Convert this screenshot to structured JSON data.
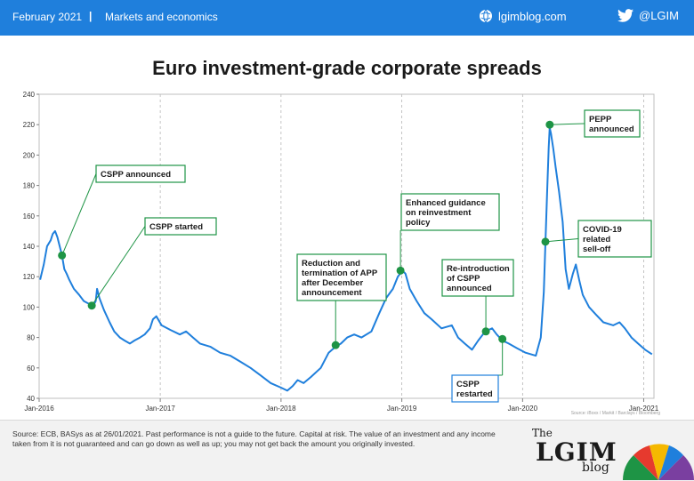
{
  "header": {
    "date": "February 2021",
    "separator": "|",
    "section": "Markets and economics",
    "site": "lgimblog.com",
    "handle": "@LGIM",
    "brand_color": "#1f7fdc"
  },
  "footer": {
    "source": "Source: ECB, BASys as at 26/01/2021. Past performance is not a guide to the future. Capital at risk. The value of an investment and any income taken from it is not guaranteed and can go down as well as up; you may not get back the amount you originally invested.",
    "brand_the": "The",
    "brand_lgim": "LGIM",
    "brand_blog": "blog"
  },
  "chart_data": {
    "type": "line",
    "title": "Euro investment-grade corporate spreads",
    "credit": "Source: iBoxx / Markit / Barclays / Bloomberg",
    "xlabel": "",
    "ylabel": "",
    "ylim": [
      40,
      240
    ],
    "yticks": [
      40,
      60,
      80,
      100,
      120,
      140,
      160,
      180,
      200,
      220,
      240
    ],
    "xlim": [
      "2016-01-01",
      "2021-02-01"
    ],
    "xticks": [
      {
        "date": "2016-01-01",
        "label": "Jan-2016"
      },
      {
        "date": "2017-01-01",
        "label": "Jan-2017"
      },
      {
        "date": "2018-01-01",
        "label": "Jan-2018"
      },
      {
        "date": "2019-01-01",
        "label": "Jan-2019"
      },
      {
        "date": "2020-01-01",
        "label": "Jan-2020"
      },
      {
        "date": "2021-01-01",
        "label": "Jan-2021"
      }
    ],
    "grid": "vertical-dashed",
    "line_color": "#1f7fdc",
    "marker_color": "#1e9445",
    "series": [
      {
        "points": [
          [
            "2016-01-04",
            118
          ],
          [
            "2016-01-15",
            128
          ],
          [
            "2016-01-25",
            140
          ],
          [
            "2016-02-05",
            144
          ],
          [
            "2016-02-11",
            148
          ],
          [
            "2016-02-18",
            150
          ],
          [
            "2016-02-25",
            146
          ],
          [
            "2016-03-03",
            140
          ],
          [
            "2016-03-10",
            134
          ],
          [
            "2016-03-17",
            125
          ],
          [
            "2016-03-24",
            122
          ],
          [
            "2016-04-01",
            118
          ],
          [
            "2016-04-15",
            112
          ],
          [
            "2016-05-01",
            108
          ],
          [
            "2016-05-15",
            104
          ],
          [
            "2016-06-01",
            102
          ],
          [
            "2016-06-10",
            100
          ],
          [
            "2016-06-20",
            104
          ],
          [
            "2016-06-24",
            112
          ],
          [
            "2016-07-01",
            106
          ],
          [
            "2016-07-15",
            98
          ],
          [
            "2016-08-01",
            90
          ],
          [
            "2016-08-15",
            84
          ],
          [
            "2016-09-01",
            80
          ],
          [
            "2016-09-15",
            78
          ],
          [
            "2016-10-01",
            76
          ],
          [
            "2016-10-15",
            78
          ],
          [
            "2016-11-01",
            80
          ],
          [
            "2016-11-15",
            82
          ],
          [
            "2016-12-01",
            86
          ],
          [
            "2016-12-10",
            92
          ],
          [
            "2016-12-20",
            94
          ],
          [
            "2017-01-05",
            88
          ],
          [
            "2017-02-01",
            85
          ],
          [
            "2017-03-01",
            82
          ],
          [
            "2017-03-20",
            84
          ],
          [
            "2017-04-10",
            80
          ],
          [
            "2017-05-01",
            76
          ],
          [
            "2017-06-01",
            74
          ],
          [
            "2017-07-01",
            70
          ],
          [
            "2017-08-01",
            68
          ],
          [
            "2017-09-01",
            64
          ],
          [
            "2017-10-01",
            60
          ],
          [
            "2017-11-01",
            55
          ],
          [
            "2017-12-01",
            50
          ],
          [
            "2018-01-01",
            47
          ],
          [
            "2018-01-20",
            45
          ],
          [
            "2018-02-05",
            48
          ],
          [
            "2018-02-20",
            52
          ],
          [
            "2018-03-10",
            50
          ],
          [
            "2018-04-01",
            54
          ],
          [
            "2018-05-01",
            60
          ],
          [
            "2018-05-25",
            70
          ],
          [
            "2018-06-15",
            74
          ],
          [
            "2018-07-01",
            76
          ],
          [
            "2018-07-20",
            80
          ],
          [
            "2018-08-10",
            82
          ],
          [
            "2018-09-01",
            80
          ],
          [
            "2018-10-01",
            84
          ],
          [
            "2018-10-25",
            96
          ],
          [
            "2018-11-15",
            106
          ],
          [
            "2018-12-05",
            112
          ],
          [
            "2018-12-20",
            120
          ],
          [
            "2019-01-03",
            124
          ],
          [
            "2019-01-12",
            122
          ],
          [
            "2019-01-25",
            112
          ],
          [
            "2019-02-15",
            104
          ],
          [
            "2019-03-10",
            96
          ],
          [
            "2019-04-01",
            92
          ],
          [
            "2019-05-01",
            86
          ],
          [
            "2019-06-01",
            88
          ],
          [
            "2019-06-20",
            80
          ],
          [
            "2019-07-10",
            76
          ],
          [
            "2019-08-01",
            72
          ],
          [
            "2019-08-20",
            78
          ],
          [
            "2019-09-10",
            84
          ],
          [
            "2019-09-20",
            85
          ],
          [
            "2019-10-01",
            86
          ],
          [
            "2019-10-15",
            82
          ],
          [
            "2019-11-01",
            78
          ],
          [
            "2019-11-20",
            76
          ],
          [
            "2019-12-15",
            73
          ],
          [
            "2020-01-10",
            70
          ],
          [
            "2020-02-10",
            68
          ],
          [
            "2020-02-25",
            80
          ],
          [
            "2020-03-05",
            110
          ],
          [
            "2020-03-10",
            142
          ],
          [
            "2020-03-15",
            175
          ],
          [
            "2020-03-20",
            205
          ],
          [
            "2020-03-23",
            218
          ],
          [
            "2020-03-27",
            214
          ],
          [
            "2020-04-03",
            204
          ],
          [
            "2020-04-10",
            192
          ],
          [
            "2020-04-20",
            176
          ],
          [
            "2020-05-01",
            156
          ],
          [
            "2020-05-10",
            125
          ],
          [
            "2020-05-20",
            112
          ],
          [
            "2020-06-01",
            122
          ],
          [
            "2020-06-10",
            128
          ],
          [
            "2020-06-20",
            118
          ],
          [
            "2020-07-01",
            108
          ],
          [
            "2020-07-20",
            100
          ],
          [
            "2020-08-10",
            95
          ],
          [
            "2020-09-01",
            90
          ],
          [
            "2020-10-01",
            88
          ],
          [
            "2020-10-20",
            90
          ],
          [
            "2020-11-05",
            86
          ],
          [
            "2020-11-25",
            80
          ],
          [
            "2020-12-15",
            76
          ],
          [
            "2021-01-05",
            72
          ],
          [
            "2021-01-26",
            69
          ]
        ]
      }
    ],
    "annotations": [
      {
        "label": [
          "CSPP announced"
        ],
        "date": "2016-03-10",
        "value": 134,
        "box_color": "#1e9445"
      },
      {
        "label": [
          "CSPP started"
        ],
        "date": "2016-06-08",
        "value": 101,
        "box_color": "#1e9445"
      },
      {
        "label": [
          "Reduction and",
          "termination of APP",
          "after December",
          "announcement"
        ],
        "date": "2018-06-15",
        "value": 75,
        "box_color": "#1e9445"
      },
      {
        "label": [
          "Enhanced guidance",
          "on reinvestment",
          "policy"
        ],
        "date": "2018-12-28",
        "value": 124,
        "box_color": "#1e9445"
      },
      {
        "label": [
          "Re-introduction",
          "of CSPP",
          "announced"
        ],
        "date": "2019-09-12",
        "value": 84,
        "box_color": "#1e9445"
      },
      {
        "label": [
          "CSPP",
          "restarted"
        ],
        "date": "2019-11-01",
        "value": 79,
        "box_color": "#1f7fdc"
      },
      {
        "label": [
          "PEPP",
          "announced"
        ],
        "date": "2020-03-23",
        "value": 220,
        "box_color": "#1e9445"
      },
      {
        "label": [
          "COVID-19",
          "related",
          "sell-off"
        ],
        "date": "2020-03-10",
        "value": 143,
        "box_color": "#1e9445"
      }
    ]
  }
}
